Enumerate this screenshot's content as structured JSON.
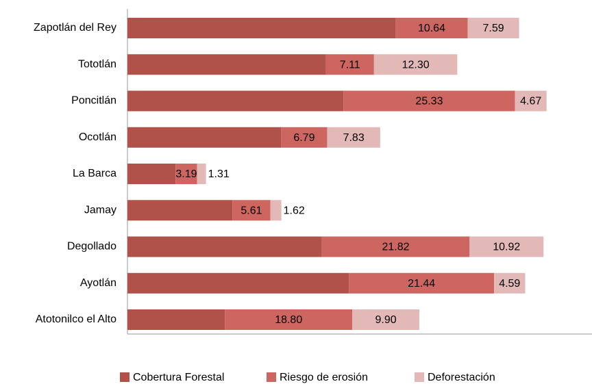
{
  "chart_data": {
    "type": "stacked_barh",
    "categories": [
      "Zapotlán del Rey",
      "Tototlán",
      "Poncitlán",
      "Ocotlán",
      "La Barca",
      "Jamay",
      "Degollado",
      "Ayotlán",
      "Atotonilco el Alto"
    ],
    "series": [
      {
        "name": "Cobertura Forestal",
        "color": "#b0524a",
        "values": [
          39.6,
          29.3,
          31.9,
          22.7,
          7.1,
          15.5,
          28.7,
          32.7,
          14.4
        ]
      },
      {
        "name": "Riesgo de erosión",
        "color": "#cd6660",
        "values": [
          10.64,
          7.11,
          25.33,
          6.79,
          3.19,
          5.61,
          21.82,
          21.44,
          18.8
        ],
        "value_labels": [
          "10.64",
          "7.11",
          "25.33",
          "6.79",
          "3.19",
          "5.61",
          "21.82",
          "21.44",
          "18.80"
        ]
      },
      {
        "name": "Deforestación",
        "color": "#e3b9b8",
        "values": [
          7.59,
          12.3,
          4.67,
          7.83,
          1.31,
          1.62,
          10.92,
          4.59,
          9.9
        ],
        "value_labels": [
          "7.59",
          "12.30",
          "4.67",
          "7.83",
          "1.31",
          "1.62",
          "10.92",
          "4.59",
          "9.90"
        ]
      }
    ],
    "xlim": [
      0,
      68.6
    ],
    "legend": "bottom"
  }
}
